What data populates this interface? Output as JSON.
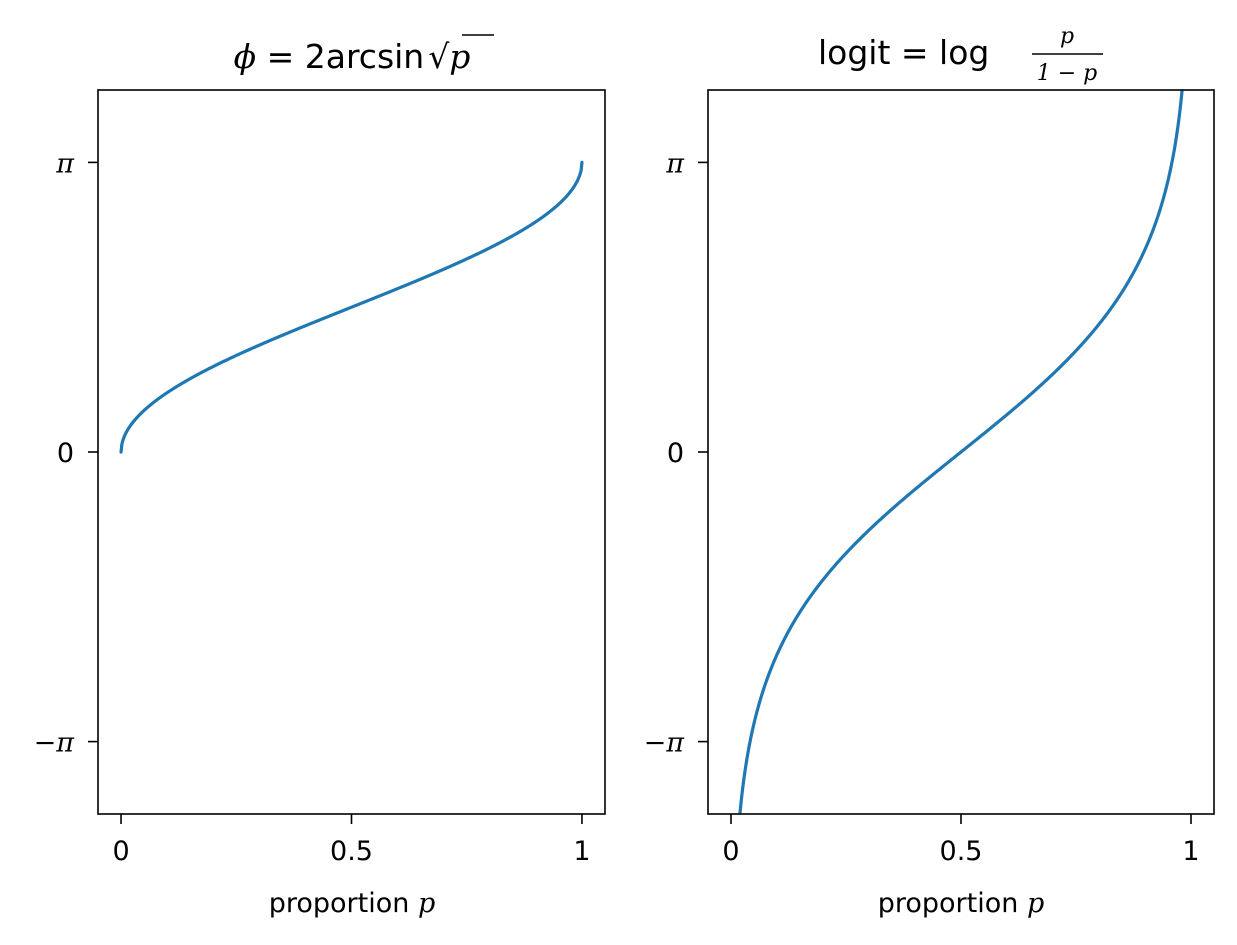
{
  "chart_data": [
    {
      "type": "line",
      "title": {
        "prefix": "ϕ",
        "eq": " = 2arcsin",
        "radical": "√",
        "var": "p"
      },
      "xlabel": {
        "text": "proportion ",
        "var": "p"
      },
      "xlim": [
        -0.05,
        1.05
      ],
      "ylim": [
        -3.9269908,
        3.9269908
      ],
      "xticks": [
        {
          "value": 0,
          "label": "0"
        },
        {
          "value": 0.5,
          "label": "0.5"
        },
        {
          "value": 1,
          "label": "1"
        }
      ],
      "yticks": [
        {
          "value": -3.14159265,
          "label": "−π"
        },
        {
          "value": 0,
          "label": "0"
        },
        {
          "value": 3.14159265,
          "label": "π"
        }
      ],
      "series": [
        {
          "color": "#1f77b4",
          "function": "2*asin(sqrt(p))",
          "x": [
            0,
            0.001,
            0.005,
            0.01,
            0.02,
            0.05,
            0.1,
            0.2,
            0.3,
            0.4,
            0.5,
            0.6,
            0.7,
            0.8,
            0.9,
            0.95,
            0.98,
            0.99,
            0.995,
            0.999,
            1
          ],
          "y": [
            0,
            0.0633,
            0.1415,
            0.2003,
            0.2838,
            0.451,
            0.6435,
            0.9273,
            1.1593,
            1.3694,
            1.5708,
            1.7722,
            1.9823,
            2.2143,
            2.4981,
            2.6906,
            2.8578,
            2.9413,
            3.0001,
            3.0783,
            3.1416
          ]
        }
      ]
    },
    {
      "type": "line",
      "title": {
        "prefix": "logit = log",
        "num": "p",
        "den": "1 − p"
      },
      "xlabel": {
        "text": "proportion ",
        "var": "p"
      },
      "xlim": [
        -0.05,
        1.05
      ],
      "ylim": [
        -3.9269908,
        3.9269908
      ],
      "xticks": [
        {
          "value": 0,
          "label": "0"
        },
        {
          "value": 0.5,
          "label": "0.5"
        },
        {
          "value": 1,
          "label": "1"
        }
      ],
      "yticks": [
        {
          "value": -3.14159265,
          "label": "−π"
        },
        {
          "value": 0,
          "label": "0"
        },
        {
          "value": 3.14159265,
          "label": "π"
        }
      ],
      "series": [
        {
          "color": "#1f77b4",
          "function": "log(p/(1-p))",
          "x": [
            0.02,
            0.05,
            0.1,
            0.2,
            0.3,
            0.4,
            0.5,
            0.6,
            0.7,
            0.8,
            0.9,
            0.95,
            0.98
          ],
          "y": [
            -3.8918,
            -2.9444,
            -2.1972,
            -1.3863,
            -0.8473,
            -0.4055,
            0,
            0.4055,
            0.8473,
            1.3863,
            2.1972,
            2.9444,
            3.8918
          ]
        }
      ]
    }
  ]
}
